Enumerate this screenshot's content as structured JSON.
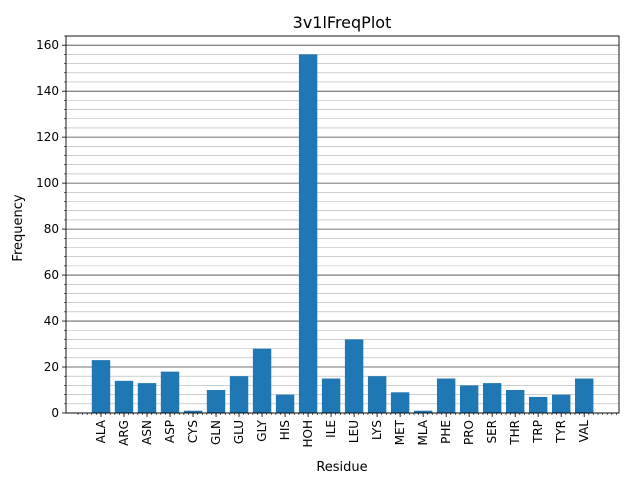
{
  "chart_data": {
    "type": "bar",
    "title": "3v1lFreqPlot",
    "xlabel": "Residue",
    "ylabel": "Frequency",
    "categories": [
      "ALA",
      "ARG",
      "ASN",
      "ASP",
      "CYS",
      "GLN",
      "GLU",
      "GLY",
      "HIS",
      "HOH",
      "ILE",
      "LEU",
      "LYS",
      "MET",
      "MLA",
      "PHE",
      "PRO",
      "SER",
      "THR",
      "TRP",
      "TYR",
      "VAL"
    ],
    "values": [
      23,
      14,
      13,
      18,
      1,
      10,
      16,
      28,
      8,
      156,
      15,
      32,
      16,
      9,
      1,
      15,
      12,
      13,
      10,
      7,
      8,
      15
    ],
    "ylim": [
      0,
      164
    ],
    "yticks": [
      0,
      20,
      40,
      60,
      80,
      100,
      120,
      140,
      160
    ],
    "grid": "y-major-and-minor",
    "legend": "none",
    "bar_color": "#1f77b4",
    "major_grid_color": "#444444",
    "minor_grid_color": "#b0b0b0"
  }
}
